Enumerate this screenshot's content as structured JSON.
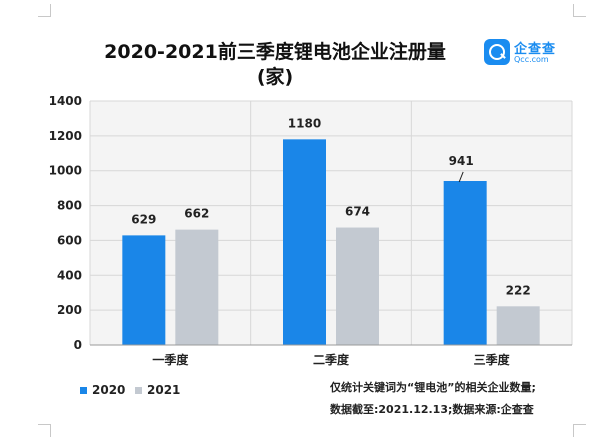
{
  "title_line1": "2020-2021前三季度锂电池企业注册量",
  "title_line2": "(家)",
  "logo": {
    "name": "企查查",
    "domain": "Qcc.com"
  },
  "notes": [
    "仅统计关键词为“锂电池”的相关企业数量;",
    "数据截至:2021.12.13;数据来源:企查查"
  ],
  "chart_data": {
    "type": "bar",
    "title": "2020-2021前三季度锂电池企业注册量(家)",
    "categories": [
      "一季度",
      "二季度",
      "三季度"
    ],
    "series": [
      {
        "name": "2020",
        "values": [
          629,
          1180,
          941
        ],
        "color": "#1a86e8"
      },
      {
        "name": "2021",
        "values": [
          662,
          674,
          222
        ],
        "color": "#c3c9d1"
      }
    ],
    "yticks": [
      "0",
      "200",
      "400",
      "600",
      "800",
      "1000",
      "1200",
      "1400"
    ],
    "ylim": [
      0,
      1400
    ],
    "grid": true,
    "legend": "bottom-left"
  }
}
